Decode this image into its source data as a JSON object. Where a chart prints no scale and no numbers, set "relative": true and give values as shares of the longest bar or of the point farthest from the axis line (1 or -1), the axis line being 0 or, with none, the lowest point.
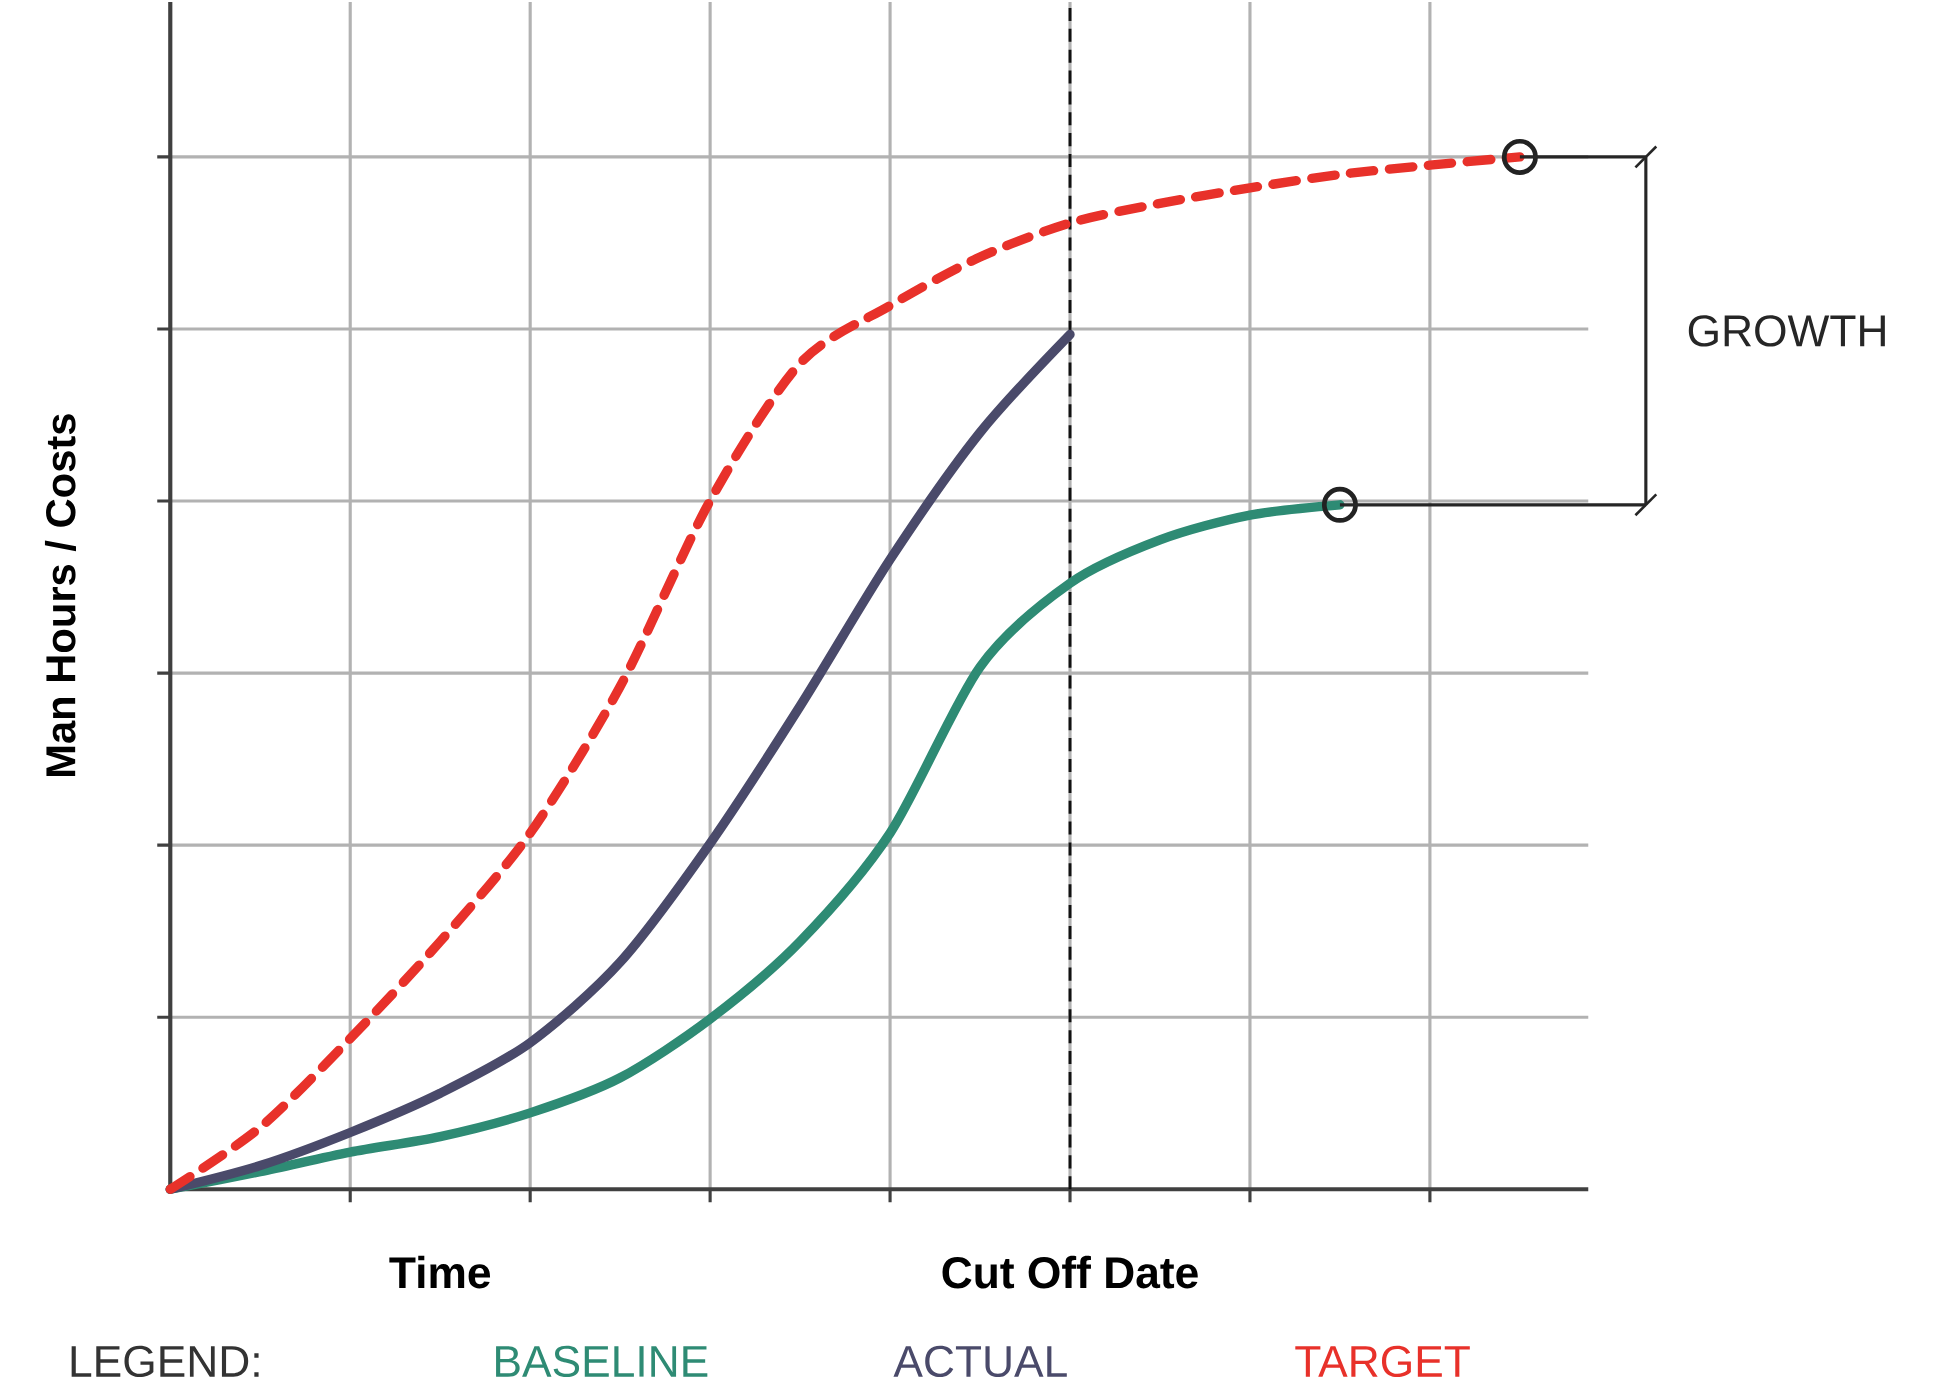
{
  "chart_data": {
    "type": "line",
    "relative": true,
    "ylabel": "Man Hours / Costs",
    "legend_title": "LEGEND:",
    "legend": "bottom",
    "grid": true,
    "categories": [
      null,
      null,
      null,
      "Time",
      null,
      null,
      null,
      null,
      null,
      null,
      "Cut Off Date",
      null,
      null,
      null,
      null,
      null
    ],
    "series": [
      {
        "name": "BASELINE",
        "color": "#2e8b74",
        "line_style": "solid",
        "values": [
          0,
          0.017,
          0.036,
          0.051,
          0.074,
          0.108,
          0.165,
          0.24,
          0.345,
          0.506,
          0.587,
          0.629,
          0.653,
          0.663,
          null,
          null
        ]
      },
      {
        "name": "ACTUAL",
        "color": "#4a4a6a",
        "line_style": "solid",
        "values": [
          0,
          0.023,
          0.055,
          0.093,
          0.142,
          0.22,
          0.335,
          0.468,
          0.61,
          0.733,
          0.828,
          null,
          null,
          null,
          null,
          null
        ]
      },
      {
        "name": "TARGET",
        "color": "#e8312a",
        "line_style": "dashed",
        "values": [
          0,
          0.06,
          0.146,
          0.24,
          0.345,
          0.487,
          0.667,
          0.8,
          0.856,
          0.903,
          0.936,
          0.955,
          0.97,
          0.983,
          0.992,
          1
        ]
      },
      {
        "type": "scatter",
        "marker": "circle",
        "color": "#222222",
        "values": [
          null,
          null,
          null,
          null,
          null,
          null,
          null,
          null,
          null,
          null,
          null,
          null,
          null,
          0.663,
          null,
          1
        ]
      }
    ],
    "ref_lines": [
      {
        "axis": "x",
        "value": "Cut Off Date",
        "color": "#111111",
        "line_style": "dashed"
      }
    ],
    "annotations": [
      "GROWTH"
    ]
  }
}
